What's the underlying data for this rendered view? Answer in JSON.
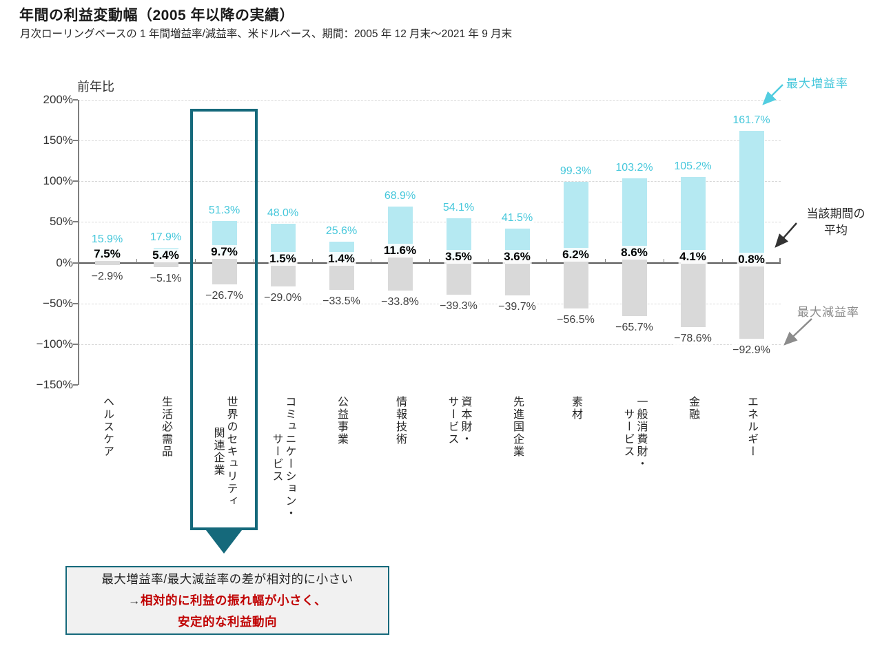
{
  "header": {
    "title": "年間の利益変動幅（2005 年以降の実績）",
    "subtitle": "月次ローリングベースの 1 年間増益率/減益率、米ドルベース、期間：2005 年 12 月末～2021 年 9 月末"
  },
  "chart_data": {
    "type": "bar",
    "subtype": "floating-range-bars",
    "ylabel": "前年比",
    "ylim": [
      -150,
      200
    ],
    "grid": "dashed-horizontal",
    "yticks": [
      {
        "label": "200%",
        "value": 200
      },
      {
        "label": "150%",
        "value": 150
      },
      {
        "label": "100%",
        "value": 100
      },
      {
        "label": "50%",
        "value": 50
      },
      {
        "label": "0%",
        "value": 0
      },
      {
        "label": "−50%",
        "value": -50
      },
      {
        "label": "−100%",
        "value": -100
      },
      {
        "label": "−150%",
        "value": -150
      }
    ],
    "categories": [
      "ヘルスケア",
      "生活必需品",
      "世界のセキュリティ\n関連企業",
      "コミュニケーション・\nサービス",
      "公益事業",
      "情報技術",
      "資本財・\nサービス",
      "先進国企業",
      "素材",
      "一般消費財・\nサービス",
      "金融",
      "エネルギー"
    ],
    "series": [
      {
        "name": "最大増益率",
        "values": [
          15.9,
          17.9,
          51.3,
          48.0,
          25.6,
          68.9,
          54.1,
          41.5,
          99.3,
          103.2,
          105.2,
          161.7
        ],
        "labels": [
          "15.9%",
          "17.9%",
          "51.3%",
          "48.0%",
          "25.6%",
          "68.9%",
          "54.1%",
          "41.5%",
          "99.3%",
          "103.2%",
          "105.2%",
          "161.7%"
        ]
      },
      {
        "name": "当該期間の平均",
        "values": [
          7.5,
          5.4,
          9.7,
          1.5,
          1.4,
          11.6,
          3.5,
          3.6,
          6.2,
          8.6,
          4.1,
          0.8
        ],
        "labels": [
          "7.5%",
          "5.4%",
          "9.7%",
          "1.5%",
          "1.4%",
          "11.6%",
          "3.5%",
          "3.6%",
          "6.2%",
          "8.6%",
          "4.1%",
          "0.8%"
        ]
      },
      {
        "name": "最大減益率",
        "values": [
          -2.9,
          -5.1,
          -26.7,
          -29.0,
          -33.5,
          -33.8,
          -39.3,
          -39.7,
          -56.5,
          -65.7,
          -78.6,
          -92.9
        ],
        "labels": [
          "−2.9%",
          "−5.1%",
          "−26.7%",
          "−29.0%",
          "−33.5%",
          "−33.8%",
          "−39.3%",
          "−39.7%",
          "−56.5%",
          "−65.7%",
          "−78.6%",
          "−92.9%"
        ]
      }
    ],
    "highlighted_category_index": 2
  },
  "annotations": {
    "max_rate": "最大増益率",
    "avg_line1": "当該期間の",
    "avg_line2": "平均",
    "min_rate": "最大減益率"
  },
  "callout": {
    "line1": "最大増益率/最大減益率の差が相対的に小さい",
    "line2_arrow": "→",
    "line2_text": "相対的に利益の振れ幅が小さく、",
    "line3": "安定的な利益動向"
  },
  "colors": {
    "cyan_bar": "#b5e9f2",
    "cyan_text": "#45c7db",
    "gray_bar": "#d9d9d9",
    "min_label_text": "#404040",
    "teal_accent": "#15697b",
    "red_text": "#c00000",
    "gray_annotation": "#8c8c8c",
    "dark_text": "#262626"
  }
}
